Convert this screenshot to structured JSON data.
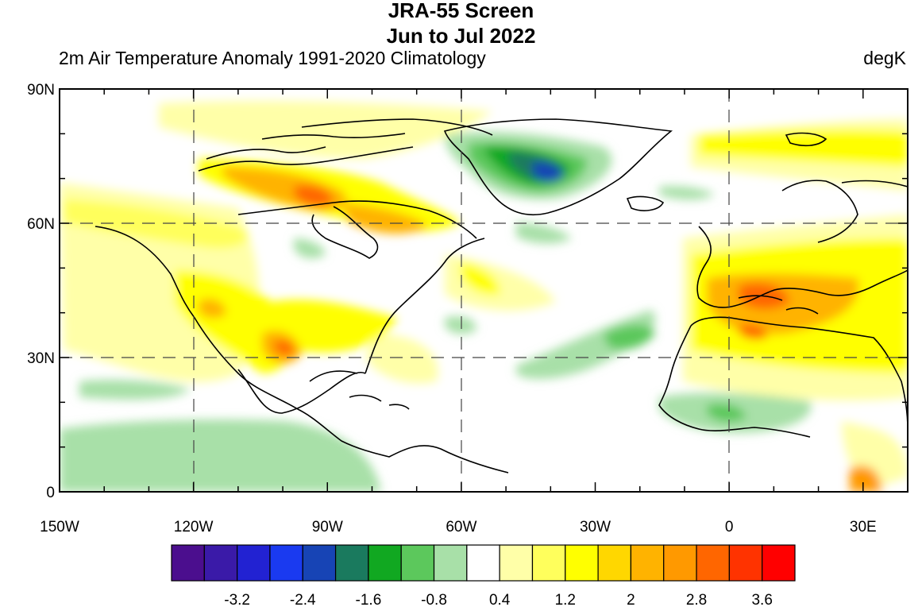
{
  "header": {
    "title_line1": "JRA-55 Screen",
    "title_line2": "Jun to Jul 2022",
    "left_subtitle": "2m Air Temperature Anomaly  1991-2020 Climatology",
    "right_subtitle": "degK"
  },
  "map": {
    "lon_range": [
      -150,
      40
    ],
    "lat_range": [
      0,
      90
    ],
    "lat_labels": [
      {
        "value": 90,
        "text": "90N"
      },
      {
        "value": 60,
        "text": "60N"
      },
      {
        "value": 30,
        "text": "30N"
      },
      {
        "value": 0,
        "text": "0"
      }
    ],
    "lon_labels": [
      {
        "value": -150,
        "text": "150W"
      },
      {
        "value": -120,
        "text": "120W"
      },
      {
        "value": -90,
        "text": "90W"
      },
      {
        "value": -60,
        "text": "60W"
      },
      {
        "value": -30,
        "text": "30W"
      },
      {
        "value": 0,
        "text": "0"
      },
      {
        "value": 30,
        "text": "30E"
      }
    ],
    "dashed_gridlines_lon": [
      -120,
      -60,
      0
    ],
    "dashed_gridlines_lat": [
      60,
      30
    ]
  },
  "colorbar": {
    "colors": [
      "#4b0e8e",
      "#3a1aa8",
      "#2222d2",
      "#1a3af0",
      "#1744b5",
      "#1a7a5e",
      "#11a821",
      "#5cc85c",
      "#a8e0a8",
      "#ffffff",
      "#ffffa8",
      "#ffff5c",
      "#ffff00",
      "#ffd700",
      "#ffb300",
      "#ff9900",
      "#ff6600",
      "#ff3300",
      "#ff0000"
    ],
    "labels": [
      "-3.2",
      "-2.4",
      "-1.6",
      "-0.8",
      "0.4",
      "1.2",
      "2",
      "2.8",
      "3.6"
    ]
  }
}
